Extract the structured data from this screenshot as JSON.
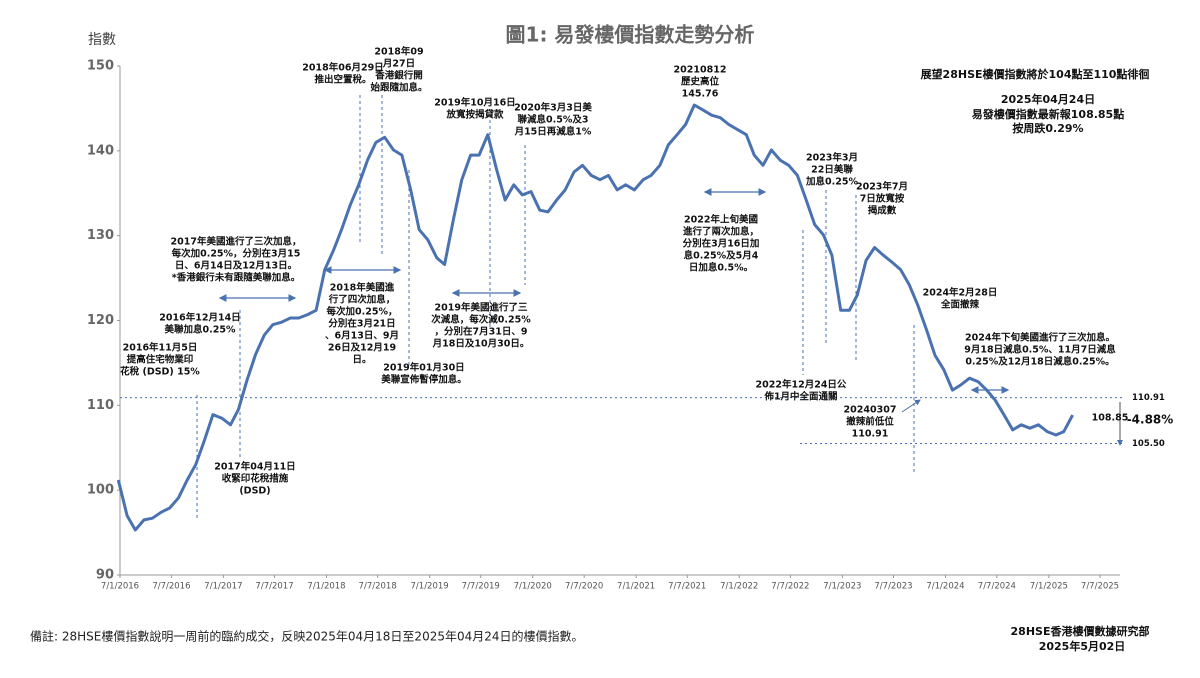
{
  "chart_data": {
    "type": "line",
    "title": "圖1: 易發樓價指數走勢分析",
    "y_label": "指數",
    "color": "#4a72b0",
    "ylim": [
      90,
      150
    ],
    "yticks": [
      90,
      100,
      110,
      120,
      130,
      140,
      150
    ],
    "xlim": [
      "2016-01-07",
      "2025-07-07"
    ],
    "xticks": [
      {
        "value": "2016-01-07",
        "label": "7/1/2016"
      },
      {
        "value": "2016-07-07",
        "label": "7/7/2016"
      },
      {
        "value": "2017-01-07",
        "label": "7/1/2017"
      },
      {
        "value": "2017-07-07",
        "label": "7/7/2017"
      },
      {
        "value": "2018-01-07",
        "label": "7/1/2018"
      },
      {
        "value": "2018-07-07",
        "label": "7/7/2018"
      },
      {
        "value": "2019-01-07",
        "label": "7/1/2019"
      },
      {
        "value": "2019-07-07",
        "label": "7/7/2019"
      },
      {
        "value": "2020-01-07",
        "label": "7/1/2020"
      },
      {
        "value": "2020-07-07",
        "label": "7/7/2020"
      },
      {
        "value": "2021-01-07",
        "label": "7/1/2021"
      },
      {
        "value": "2021-07-07",
        "label": "7/7/2021"
      },
      {
        "value": "2022-01-07",
        "label": "7/1/2022"
      },
      {
        "value": "2022-07-07",
        "label": "7/7/2022"
      },
      {
        "value": "2023-01-07",
        "label": "7/1/2023"
      },
      {
        "value": "2023-07-07",
        "label": "7/7/2023"
      },
      {
        "value": "2024-01-07",
        "label": "7/1/2024"
      },
      {
        "value": "2024-07-07",
        "label": "7/7/2024"
      },
      {
        "value": "2025-01-07",
        "label": "7/1/2025"
      },
      {
        "value": "2025-07-07",
        "label": "7/7/2025"
      }
    ],
    "x": [
      "2016-01",
      "2016-02",
      "2016-03",
      "2016-04",
      "2016-05",
      "2016-06",
      "2016-07",
      "2016-08",
      "2016-09",
      "2016-10",
      "2016-11",
      "2016-12",
      "2017-01",
      "2017-02",
      "2017-03",
      "2017-04",
      "2017-05",
      "2017-06",
      "2017-07",
      "2017-08",
      "2017-09",
      "2017-10",
      "2017-11",
      "2017-12",
      "2018-01",
      "2018-02",
      "2018-03",
      "2018-04",
      "2018-05",
      "2018-06",
      "2018-07",
      "2018-08",
      "2018-09",
      "2018-10",
      "2018-11",
      "2018-12",
      "2019-01",
      "2019-02",
      "2019-03",
      "2019-04",
      "2019-05",
      "2019-06",
      "2019-07",
      "2019-08",
      "2019-09",
      "2019-10",
      "2019-11",
      "2019-12",
      "2020-01",
      "2020-02",
      "2020-03",
      "2020-04",
      "2020-05",
      "2020-06",
      "2020-07",
      "2020-08",
      "2020-09",
      "2020-10",
      "2020-11",
      "2020-12",
      "2021-01",
      "2021-02",
      "2021-03",
      "2021-04",
      "2021-05",
      "2021-06",
      "2021-07",
      "2021-08",
      "2021-09",
      "2021-10",
      "2021-11",
      "2021-12",
      "2022-01",
      "2022-02",
      "2022-03",
      "2022-04",
      "2022-05",
      "2022-06",
      "2022-07",
      "2022-08",
      "2022-09",
      "2022-10",
      "2022-11",
      "2022-12",
      "2023-01",
      "2023-02",
      "2023-03",
      "2023-04",
      "2023-05",
      "2023-06",
      "2023-07",
      "2023-08",
      "2023-09",
      "2023-10",
      "2023-11",
      "2023-12",
      "2024-01",
      "2024-02",
      "2024-03",
      "2024-04",
      "2024-05",
      "2024-06",
      "2024-07",
      "2024-08",
      "2024-09",
      "2024-10",
      "2024-11",
      "2024-12",
      "2025-01",
      "2025-02",
      "2025-03",
      "2025-04"
    ],
    "values": [
      101.2,
      97,
      95.3,
      96.5,
      96.7,
      97.4,
      97.9,
      99.1,
      101.2,
      103,
      105.9,
      108.9,
      108.5,
      107.7,
      109.5,
      113,
      116,
      118.3,
      119.5,
      119.8,
      120.3,
      120.3,
      120.7,
      121.2,
      126,
      128.3,
      130.7,
      133.6,
      136,
      138.9,
      141,
      141.6,
      140.1,
      139.5,
      135.4,
      130.7,
      129.5,
      127.4,
      126.6,
      131.9,
      136.6,
      139.5,
      139.5,
      141.9,
      137.8,
      134.2,
      136,
      134.8,
      135.2,
      133,
      132.8,
      134.2,
      135.4,
      137.5,
      138.3,
      137.1,
      136.6,
      137.1,
      135.4,
      136,
      135.4,
      136.6,
      137.1,
      138.3,
      140.7,
      141.9,
      143.1,
      145.4,
      144.8,
      144.2,
      143.9,
      143.1,
      142.5,
      141.9,
      139.5,
      138.3,
      140.1,
      138.9,
      138.3,
      137.1,
      134.2,
      131.3,
      130.1,
      127.7,
      121.2,
      121.2,
      123,
      127.1,
      128.6,
      127.7,
      126.9,
      126,
      124.2,
      121.8,
      118.9,
      115.9,
      114.2,
      111.8,
      112.4,
      113.2,
      112.8,
      111.8,
      110.6,
      108.9,
      107.1,
      107.7,
      107.3,
      107.7,
      106.9,
      106.5,
      106.9,
      108.85
    ],
    "reference_lines": [
      110.91,
      {
        "value": 105.5,
        "label": "105.50"
      }
    ],
    "annotations": [
      [
        "2016年11月5日",
        "提高住宅物業印",
        "花稅 (DSD) 15%"
      ],
      [
        "2016年12月14日",
        "美聯加息0.25%"
      ],
      [
        "2017年美國進行了三次加息，",
        "每次加0.25%，分別在3月15",
        "日、6月14日及12月13日。",
        "*香港銀行未有跟隨美聯加息。"
      ],
      [
        "2017年04月11日",
        "收緊印花稅措施",
        "(DSD)"
      ],
      [
        "2018年06月29日",
        "推出空置稅。"
      ],
      [
        "2018年09",
        "月27日",
        "香港銀行開",
        "始跟隨加息。"
      ],
      [
        "2018年美國進",
        "行了四次加息，",
        "每次加0.25%，",
        "分別在3月21日",
        "、6月13日、9月",
        "26日及12月19",
        "日。"
      ],
      [
        "2019年01月30日",
        "美聯宣佈暫停加息。"
      ],
      [
        "2019年10月16日",
        "放寬按揭貸款"
      ],
      [
        "2020年3月3日美",
        "聯減息0.5%及3",
        "月15日再減息1%"
      ],
      [
        "2019年美國進行了三",
        "次減息，每次減0.25%",
        "，分別在7月31日、9",
        "月18日及10月30日。"
      ],
      [
        "20210812",
        "歷史高位",
        "145.76"
      ],
      [
        "2022年上旬美國",
        "進行了兩次加息，",
        "分別在3月16日加",
        "息0.25%及5月4",
        "日加息0.5%。"
      ],
      [
        "2023年3月",
        "22日美聯",
        "加息0.25%"
      ],
      [
        "2023年7月",
        "7日放寬按",
        "揭成數"
      ],
      [
        "2024年2月28日",
        "全面撤辣"
      ],
      [
        "2022年12月24日公",
        "佈1月中全面通關"
      ],
      [
        "20240307",
        "撤辣前低位",
        "110.91"
      ],
      [
        "2024年下旬美國進行了三次加息。",
        "9月18日減息0.5%、11月7日減息",
        "0.25%及12月18日減息0.25%。"
      ],
      [
        "108.85"
      ],
      [
        "-4.88%"
      ]
    ],
    "outlook": [
      "展望28HSE樓價指數將於104點至110點徘徊",
      "2025年04月24日",
      "易發樓價指數最新報108.85點",
      "按周跌0.29%"
    ],
    "footnote": "備註: 28HSE樓價指數說明一周前的臨約成交，反映2025年04月18日至2025年04月24日的樓價指數。",
    "source": [
      "28HSE香港樓價數據研究部",
      "2025年5月02日"
    ]
  }
}
